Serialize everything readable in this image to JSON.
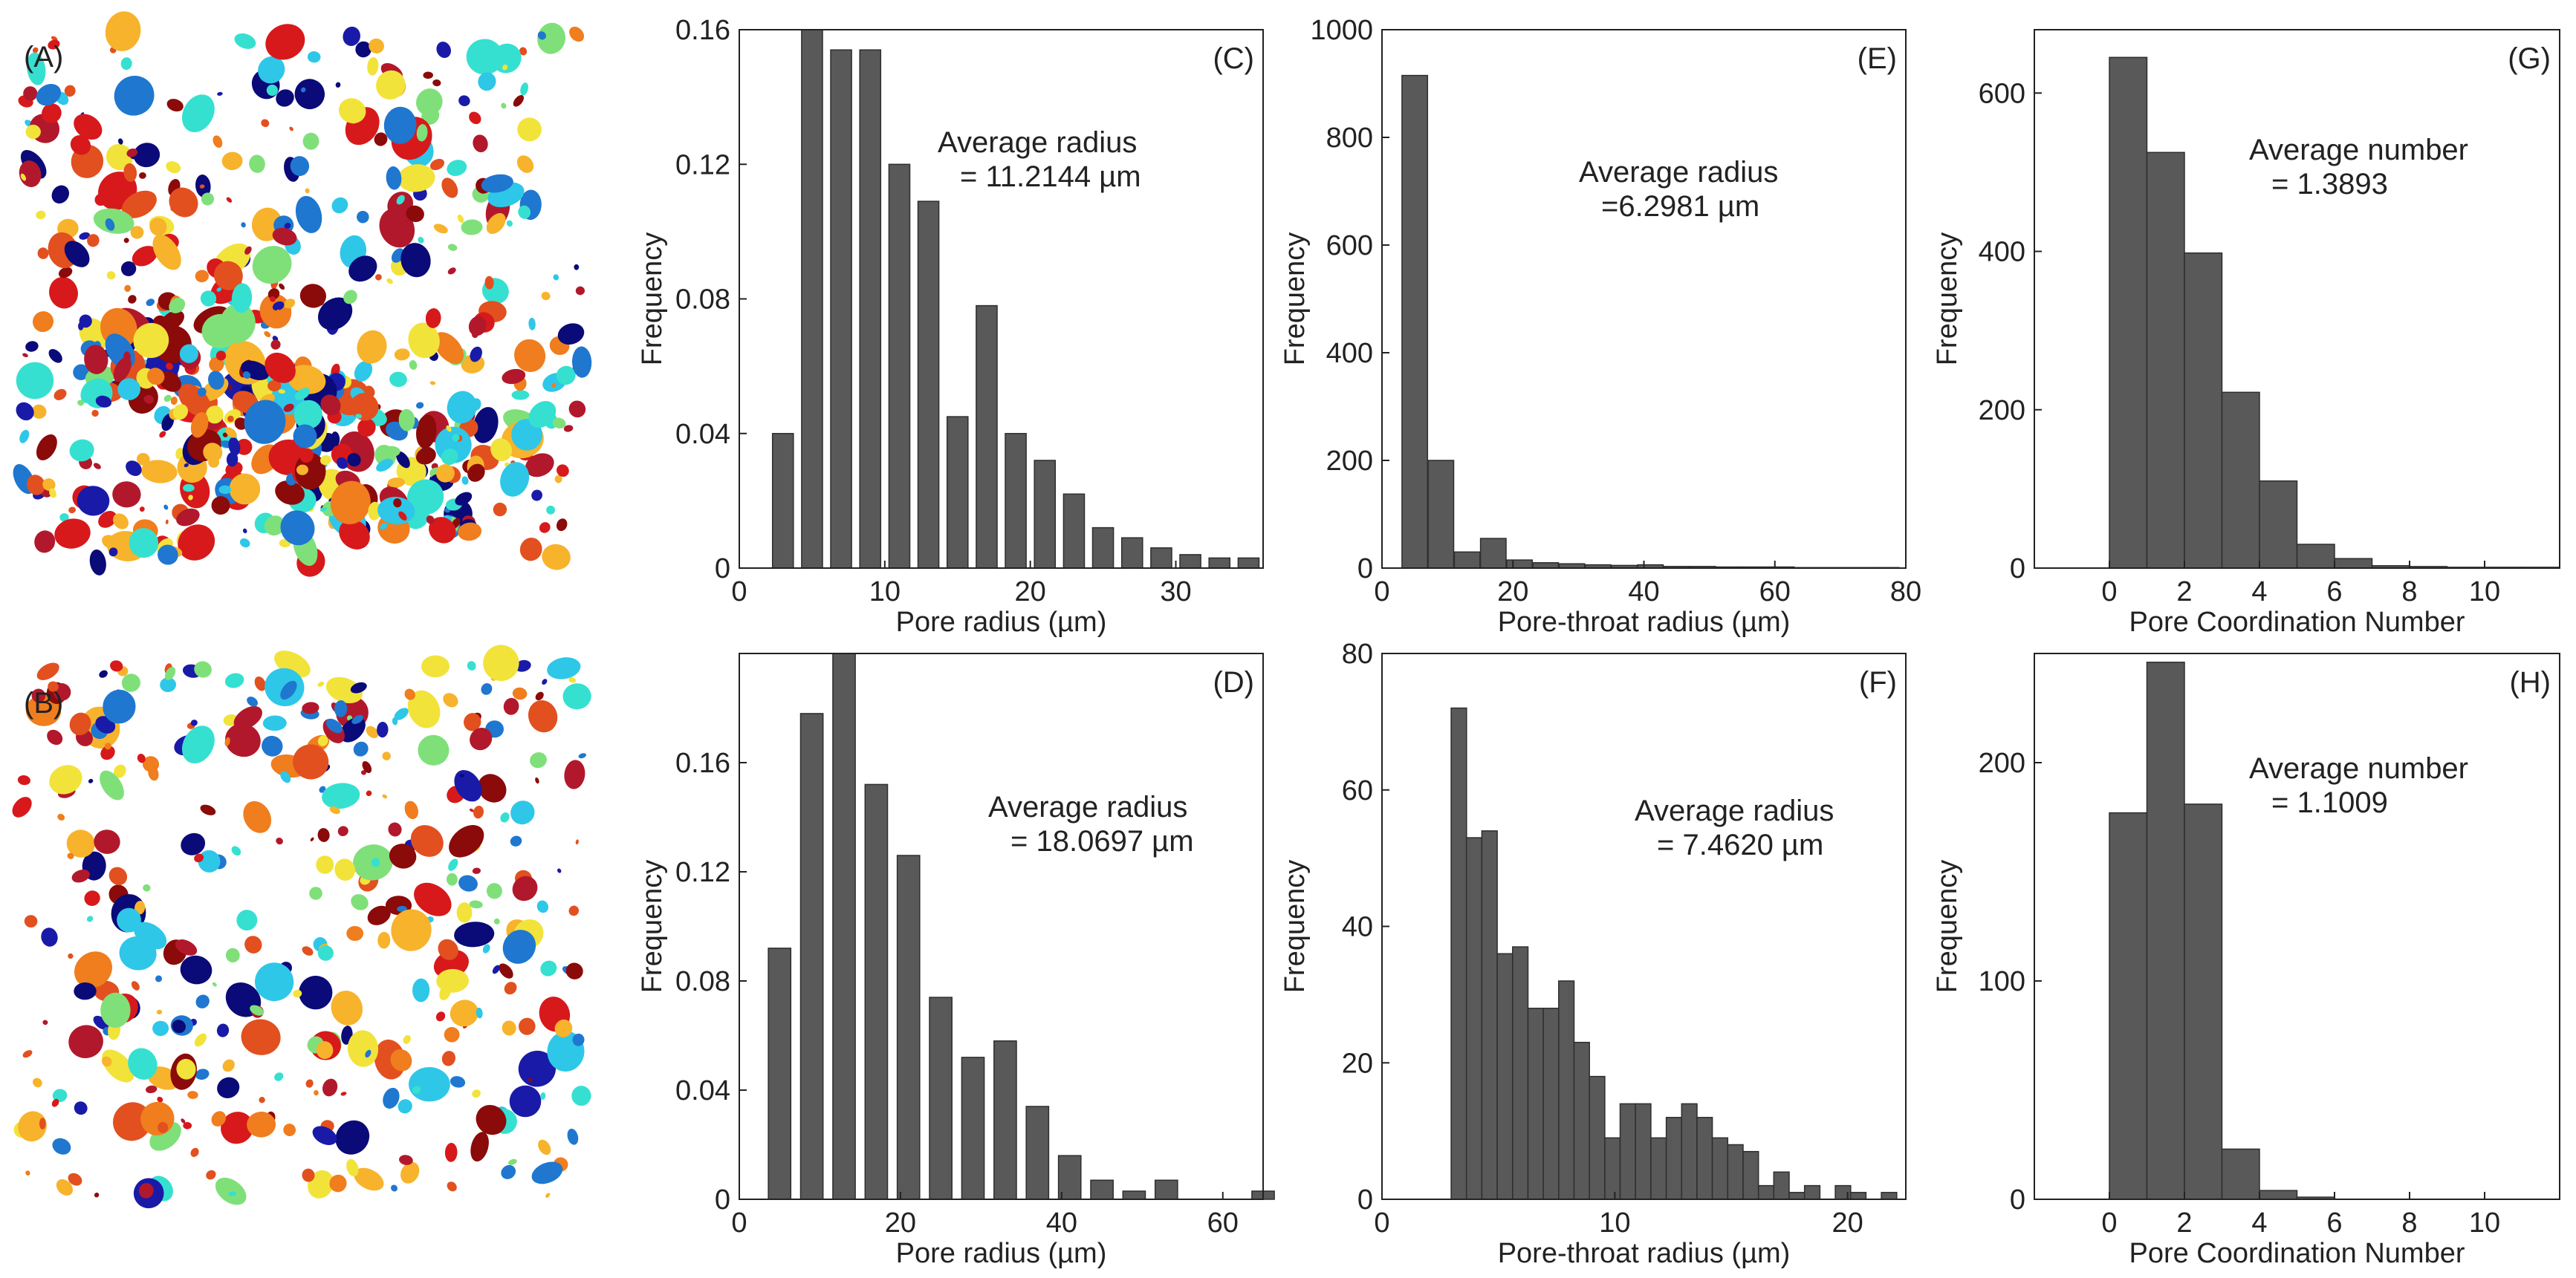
{
  "image_labels": {
    "A": "(A)",
    "B": "(B)"
  },
  "pore_map_colors": [
    "#d7191c",
    "#b2182b",
    "#1a1aa8",
    "#0a0a78",
    "#1f77d0",
    "#2ec7e8",
    "#36e0d0",
    "#7fe07a",
    "#f2e33a",
    "#f7b32b",
    "#f07d1e",
    "#e2501f",
    "#8b0a0a"
  ],
  "chart_data": [
    {
      "id": "C",
      "panel_label": "(C)",
      "type": "bar",
      "xlabel": "Pore radius (µm)",
      "ylabel": "Frequency",
      "xlim": [
        0,
        36
      ],
      "ylim": [
        0,
        0.16
      ],
      "xticks": [
        0,
        10,
        20,
        30
      ],
      "yticks": [
        0,
        0.04,
        0.08,
        0.12,
        0.16
      ],
      "ytick_labels": [
        "0",
        "0.04",
        "0.08",
        "0.12",
        "0.16"
      ],
      "bin_width": 1.75,
      "bar_fill": 0.82,
      "x": [
        3,
        5,
        7,
        9,
        11,
        13,
        15,
        17,
        19,
        21,
        23,
        25,
        27,
        29,
        31,
        33,
        35
      ],
      "values": [
        0.04,
        0.16,
        0.154,
        0.154,
        0.12,
        0.109,
        0.045,
        0.078,
        0.04,
        0.032,
        0.022,
        0.012,
        0.009,
        0.006,
        0.004,
        0.003,
        0.003
      ],
      "annotation": [
        "Average radius",
        "= 11.2144 µm"
      ]
    },
    {
      "id": "D",
      "panel_label": "(D)",
      "type": "bar",
      "xlabel": "Pore radius (µm)",
      "ylabel": "Frequency",
      "xlim": [
        0,
        65
      ],
      "ylim": [
        0,
        0.2
      ],
      "xticks": [
        0,
        20,
        40,
        60
      ],
      "yticks": [
        0,
        0.04,
        0.08,
        0.12,
        0.16
      ],
      "ytick_labels": [
        "0",
        "0.04",
        "0.08",
        "0.12",
        "0.16"
      ],
      "bin_width": 3.4,
      "bar_fill": 0.82,
      "x": [
        5,
        9,
        13,
        17,
        21,
        25,
        29,
        33,
        37,
        41,
        45,
        49,
        53,
        57,
        61,
        65
      ],
      "values": [
        0.092,
        0.178,
        0.2,
        0.152,
        0.126,
        0.074,
        0.052,
        0.058,
        0.034,
        0.016,
        0.007,
        0.003,
        0.007,
        0.0,
        0.0,
        0.003
      ],
      "annotation": [
        "Average radius",
        "= 18.0697 µm"
      ]
    },
    {
      "id": "E",
      "panel_label": "(E)",
      "type": "bar",
      "xlabel": "Pore-throat radius (µm)",
      "ylabel": "Frequency",
      "xlim": [
        0,
        80
      ],
      "ylim": [
        0,
        1000
      ],
      "xticks": [
        0,
        20,
        40,
        60,
        80
      ],
      "yticks": [
        0,
        200,
        400,
        600,
        800,
        1000
      ],
      "ytick_labels": [
        "0",
        "200",
        "400",
        "600",
        "800",
        "1000"
      ],
      "bin_width": 3.9,
      "bar_fill": 1.0,
      "x": [
        5,
        9,
        13,
        17,
        21,
        25,
        29,
        33,
        37,
        41,
        45,
        49,
        53,
        57,
        61,
        65,
        69,
        73,
        77
      ],
      "values": [
        915,
        200,
        30,
        55,
        15,
        10,
        8,
        6,
        5,
        6,
        3,
        3,
        2,
        2,
        2,
        1,
        1,
        1,
        1
      ],
      "annotation": [
        "Average radius",
        "=6.2981 µm"
      ]
    },
    {
      "id": "F",
      "panel_label": "(F)",
      "type": "bar",
      "xlabel": "Pore-throat radius (µm)",
      "ylabel": "Frequency",
      "xlim": [
        0,
        22.5
      ],
      "ylim": [
        0,
        80
      ],
      "xticks": [
        0,
        10,
        20
      ],
      "yticks": [
        0,
        20,
        40,
        60,
        80
      ],
      "ytick_labels": [
        "0",
        "20",
        "40",
        "60",
        "80"
      ],
      "bin_width": 0.66,
      "bar_fill": 1.0,
      "x": [
        3.3,
        3.96,
        4.62,
        5.28,
        5.94,
        6.6,
        7.26,
        7.92,
        8.58,
        9.24,
        9.9,
        10.56,
        11.22,
        11.88,
        12.54,
        13.2,
        13.86,
        14.52,
        15.18,
        15.84,
        16.5,
        17.16,
        17.82,
        18.48,
        19.14,
        19.8,
        20.46,
        21.12,
        21.78
      ],
      "values": [
        72,
        53,
        54,
        36,
        37,
        28,
        28,
        32,
        23,
        18,
        9,
        14,
        14,
        9,
        12,
        14,
        12,
        9,
        8,
        7,
        2,
        4,
        1,
        2,
        0,
        2,
        1,
        0,
        1
      ],
      "annotation": [
        "Average radius",
        "= 7.4620 µm"
      ]
    },
    {
      "id": "G",
      "panel_label": "(G)",
      "type": "bar",
      "xlabel": "Pore Coordination Number",
      "ylabel": "Frequency",
      "xlim": [
        -2,
        12
      ],
      "ylim": [
        0,
        680
      ],
      "xticks": [
        0,
        2,
        4,
        6,
        8,
        10
      ],
      "yticks": [
        0,
        200,
        400,
        600
      ],
      "ytick_labels": [
        "0",
        "200",
        "400",
        "600"
      ],
      "bin_width": 1,
      "bar_fill": 1.0,
      "x": [
        0.5,
        1.5,
        2.5,
        3.5,
        4.5,
        5.5,
        6.5,
        7.5,
        8.5,
        9.5,
        10.5,
        11.5
      ],
      "values": [
        645,
        525,
        398,
        222,
        110,
        30,
        12,
        3,
        2,
        1,
        1,
        1
      ],
      "annotation": [
        "Average number",
        "= 1.3893"
      ]
    },
    {
      "id": "H",
      "panel_label": "(H)",
      "type": "bar",
      "xlabel": "Pore Coordination Number",
      "ylabel": "Frequency",
      "xlim": [
        -2,
        12
      ],
      "ylim": [
        0,
        250
      ],
      "xticks": [
        0,
        2,
        4,
        6,
        8,
        10
      ],
      "yticks": [
        0,
        100,
        200
      ],
      "ytick_labels": [
        "0",
        "100",
        "200"
      ],
      "bin_width": 1,
      "bar_fill": 1.0,
      "x": [
        0.5,
        1.5,
        2.5,
        3.5,
        4.5,
        5.5,
        6.5
      ],
      "values": [
        177,
        246,
        181,
        23,
        4,
        1,
        0
      ],
      "annotation": [
        "Average number",
        "= 1.1009"
      ]
    }
  ]
}
